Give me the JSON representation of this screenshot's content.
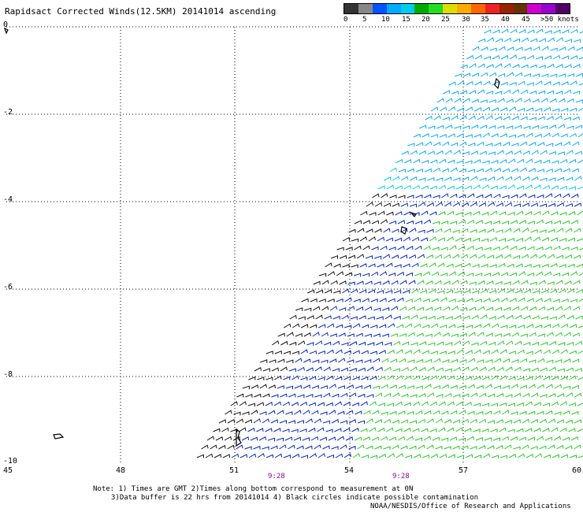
{
  "title": "Rapidsact Corrected Winds(12.5KM) 20141014 ascending",
  "legend": {
    "colors": [
      "#333333",
      "#888888",
      "#0055ff",
      "#00aaff",
      "#00ccee",
      "#00aa00",
      "#22dd22",
      "#dddd00",
      "#ffaa00",
      "#ff6600",
      "#ee2222",
      "#992200",
      "#663300",
      "#cc00cc",
      "#9900cc",
      "#550066"
    ],
    "labels": [
      "0",
      "5",
      "10",
      "15",
      "20",
      "25",
      "30",
      "35",
      "40",
      "45",
      ">50 knots"
    ]
  },
  "y_ticks": [
    "0",
    "-2",
    "-4",
    "-6",
    "-8",
    "-10"
  ],
  "x_ticks": [
    "45",
    "48",
    "51",
    "54",
    "57",
    "60"
  ],
  "times": [
    "9:28",
    "9:28"
  ],
  "notes": [
    "Note: 1) Times are GMT 2)Times along bottom correspond to measurement at 0N",
    "3)Data buffer is 22 hrs from 20141014 4) Black circles indicate possible contamination"
  ],
  "credit": "NOAA/NESDIS/Office of Research and Applications",
  "icons": {
    "barbs": "wind-barb-icon",
    "land": "island-icon"
  }
}
